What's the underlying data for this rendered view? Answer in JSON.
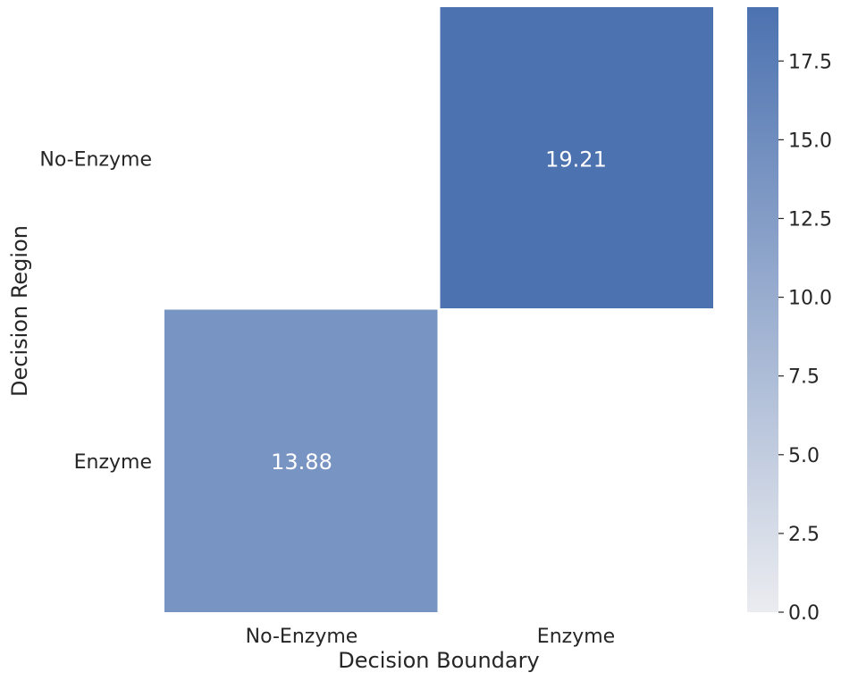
{
  "chart_data": {
    "type": "heatmap",
    "xlabel": "Decision Boundary",
    "ylabel": "Decision Region",
    "x_categories": [
      "No-Enzyme",
      "Enzyme"
    ],
    "y_categories": [
      "No-Enzyme",
      "Enzyme"
    ],
    "cells": [
      {
        "x": "Enzyme",
        "y": "No-Enzyme",
        "value": 19.21,
        "label": "19.21"
      },
      {
        "x": "No-Enzyme",
        "y": "Enzyme",
        "value": 13.88,
        "label": "13.88"
      }
    ],
    "colorbar": {
      "min": 0.0,
      "max": 19.21,
      "ticks": [
        0.0,
        2.5,
        5.0,
        7.5,
        10.0,
        12.5,
        15.0,
        17.5
      ],
      "tick_labels": [
        "0.0",
        "2.5",
        "5.0",
        "7.5",
        "10.0",
        "12.5",
        "15.0",
        "17.5"
      ],
      "color_low": "#ebecf0",
      "color_high": "#4c72b0"
    },
    "annotation_color": "#ffffff",
    "grid": false
  }
}
